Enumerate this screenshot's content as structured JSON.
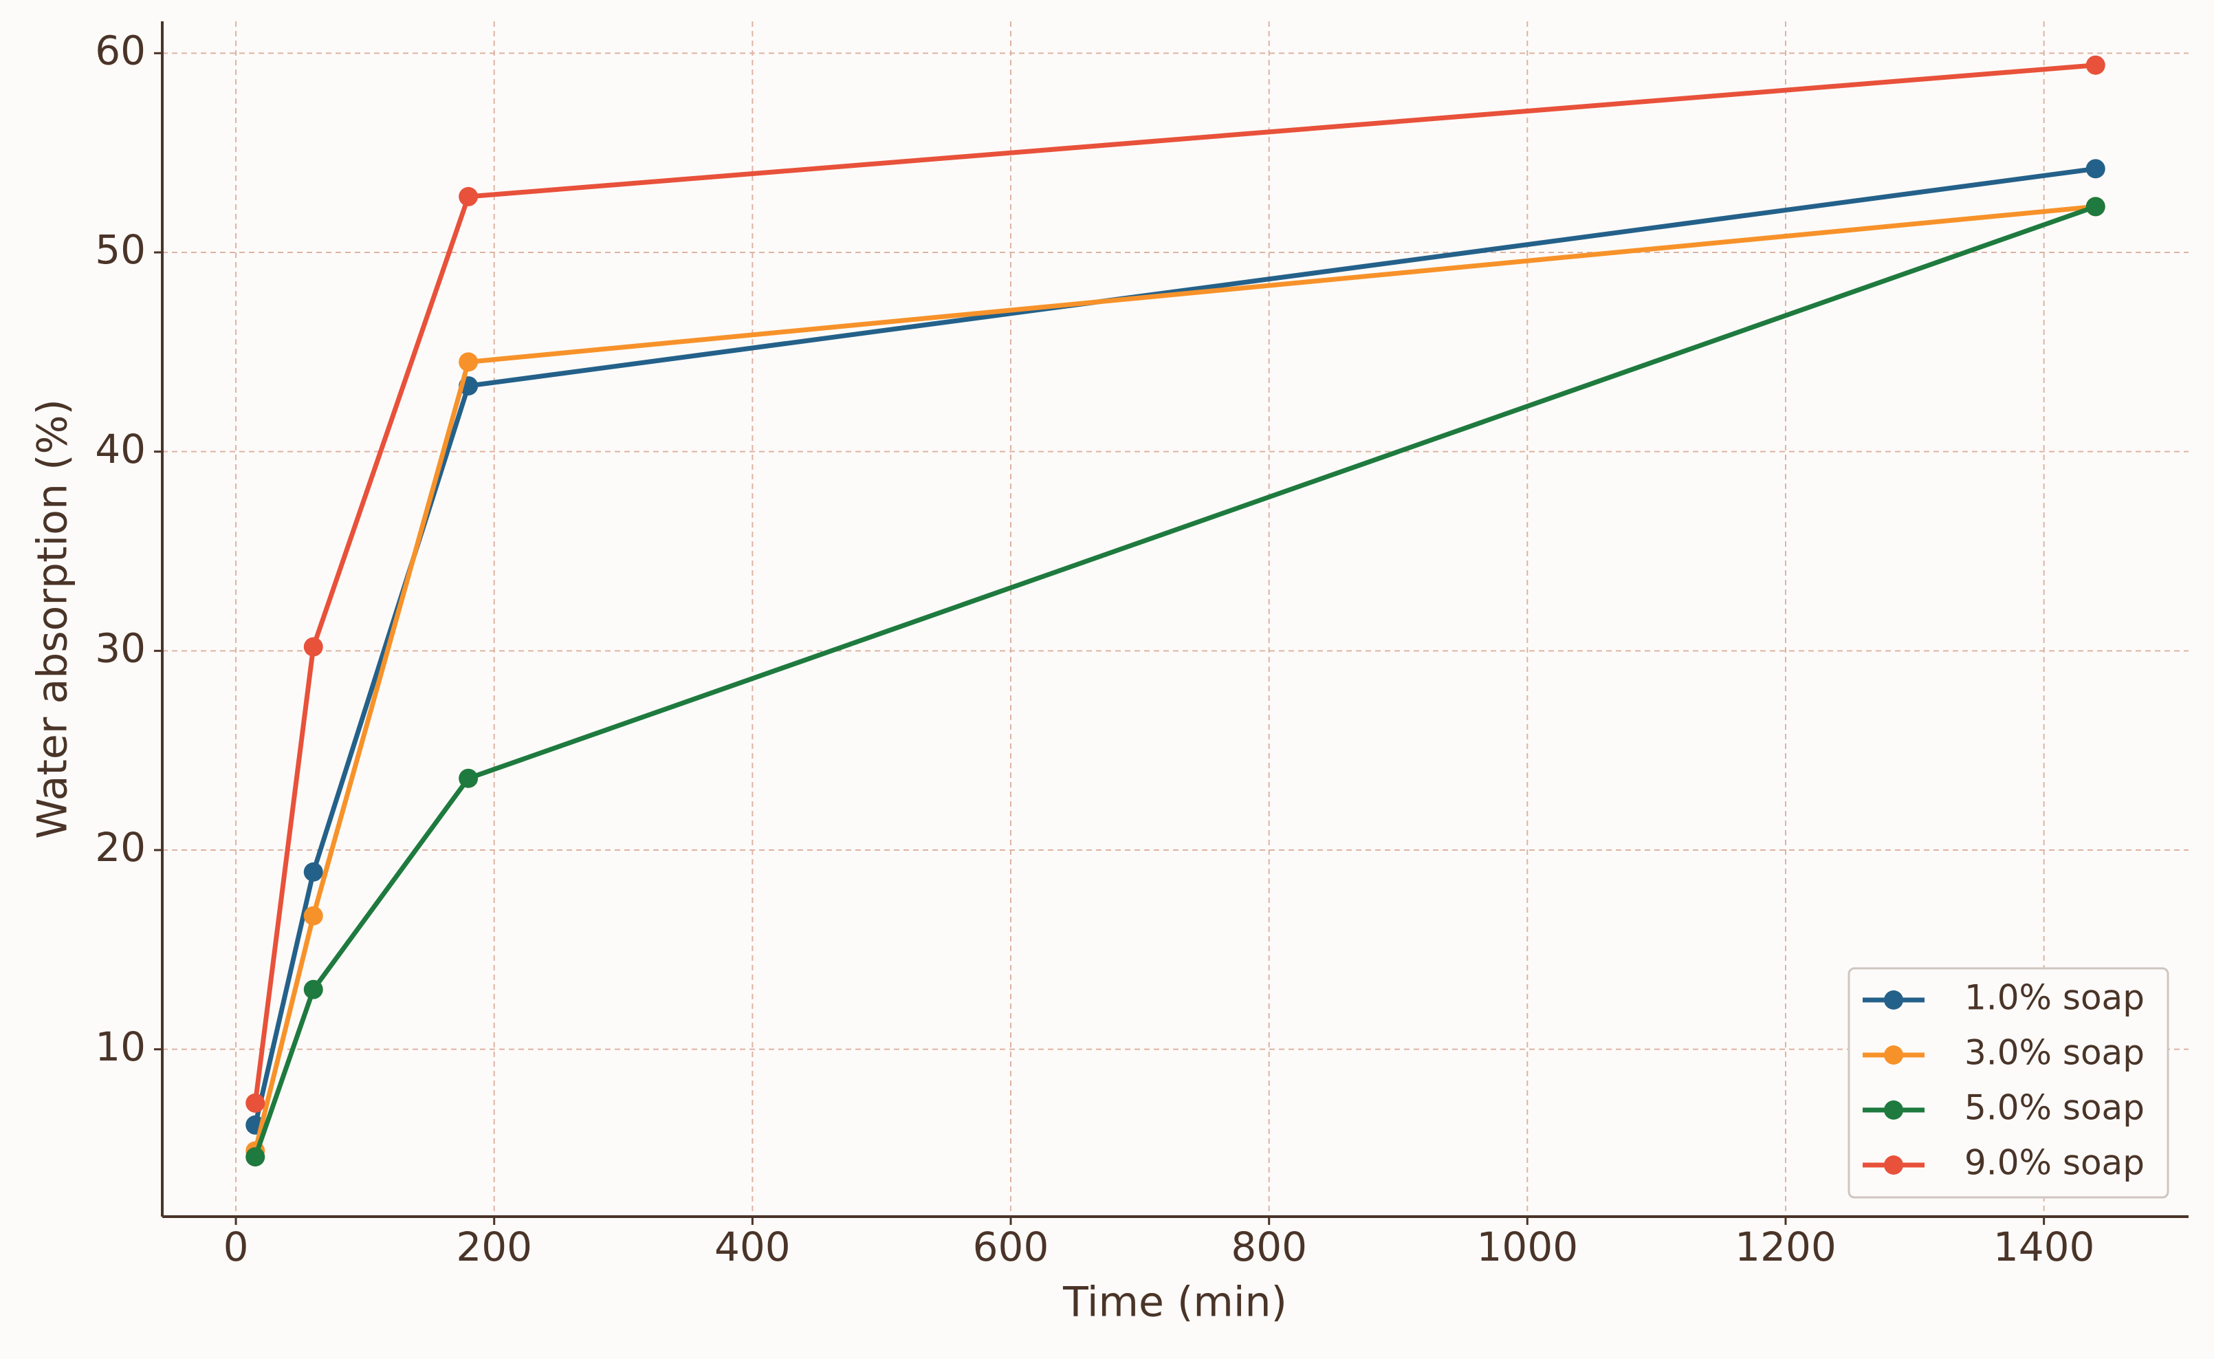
{
  "chart_data": {
    "type": "line",
    "x_label": "Time (min)",
    "y_label": "Water absorption (%)",
    "x": [
      15,
      60,
      180,
      1440
    ],
    "series": [
      {
        "name": "1.0% soap",
        "color": "#24618a",
        "values": [
          6.2,
          18.9,
          43.3,
          54.2
        ]
      },
      {
        "name": "3.0% soap",
        "color": "#f7922a",
        "values": [
          4.9,
          16.7,
          44.5,
          52.3
        ]
      },
      {
        "name": "5.0% soap",
        "color": "#1e7a3e",
        "values": [
          4.6,
          13.0,
          23.6,
          52.3
        ]
      },
      {
        "name": "9.0% soap",
        "color": "#e8513a",
        "values": [
          7.3,
          30.2,
          52.8,
          59.4
        ]
      }
    ],
    "xlim": [
      -57,
      1512
    ],
    "ylim": [
      1.6,
      61.6
    ],
    "xticks": [
      0,
      200,
      400,
      600,
      800,
      1000,
      1200,
      1400
    ],
    "yticks": [
      10,
      20,
      30,
      40,
      50,
      60
    ],
    "grid": true,
    "legend": "lower right"
  }
}
